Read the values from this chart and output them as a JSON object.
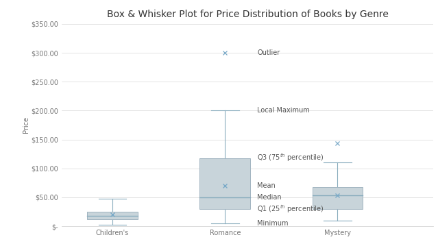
{
  "title": "Box & Whisker Plot for Price Distribution of Books by Genre",
  "xlabel": "",
  "ylabel": "Price",
  "categories": [
    "Children's",
    "Romance",
    "Mystery"
  ],
  "ylim": [
    0,
    350
  ],
  "yticks": [
    0,
    50,
    100,
    150,
    200,
    250,
    300,
    350
  ],
  "ytick_labels": [
    "$-",
    "$50.00",
    "$100.00",
    "$150.00",
    "$200.00",
    "$250.00",
    "$300.00",
    "$350.00"
  ],
  "box_data": {
    "Children's": {
      "min": 2,
      "q1": 12,
      "median": 18,
      "mean": 20,
      "q3": 25,
      "max": 47,
      "outliers": []
    },
    "Romance": {
      "min": 5,
      "q1": 30,
      "median": 50,
      "mean": 70,
      "q3": 118,
      "max": 200,
      "outliers": [
        300
      ]
    },
    "Mystery": {
      "min": 10,
      "q1": 30,
      "median": 53,
      "mean": 53,
      "q3": 68,
      "max": 110,
      "outliers": [
        143
      ]
    }
  },
  "box_color": "#a0b4c0",
  "box_face_color": "#c8d4da",
  "whisker_color": "#8aadbe",
  "median_color": "#8aadbe",
  "mean_marker_color": "#7aaac8",
  "outlier_color": "#7aaac8",
  "annotation_color": "#555555",
  "background_color": "#ffffff",
  "grid_color": "#d8d8d8",
  "title_fontsize": 10,
  "axis_label_fontsize": 7,
  "tick_fontsize": 7,
  "annotation_fontsize": 7
}
